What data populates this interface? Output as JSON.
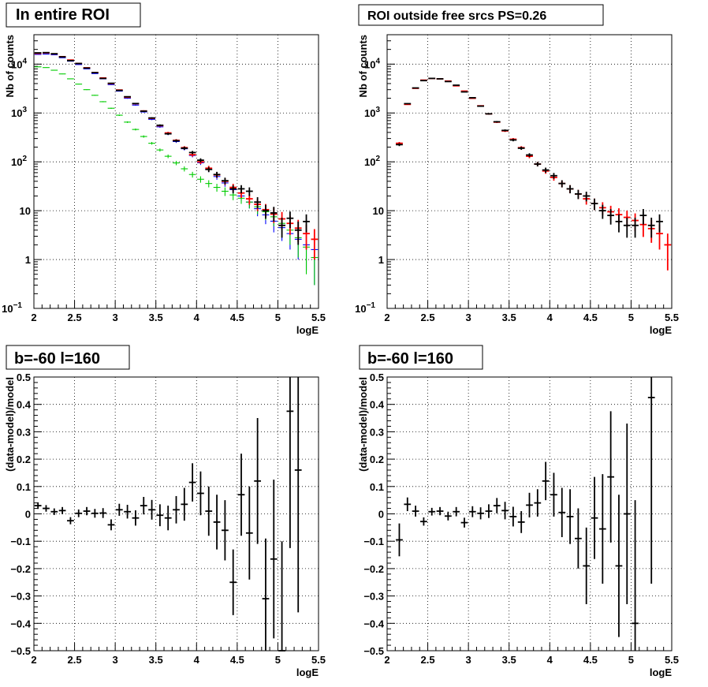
{
  "chart_data": [
    {
      "type": "scatter",
      "title": "In entire ROI",
      "xlabel": "logE",
      "ylabel": "Nb of counts",
      "xlim": [
        2,
        5.5
      ],
      "ylim": [
        0.1,
        40000
      ],
      "yscale": "log",
      "grid": true,
      "x_ticks": [
        2,
        2.5,
        3,
        3.5,
        4,
        4.5,
        5,
        5.5
      ],
      "x_tick_labels": [
        "2",
        "2.5",
        "3",
        "3.5",
        "4",
        "4.5",
        "5",
        "5.5"
      ],
      "y_ticks": [
        0.1,
        1,
        10,
        100,
        1000,
        10000
      ],
      "y_tick_labels": [
        {
          "base": "10",
          "exp": "−1"
        },
        {
          "base": "1",
          "exp": ""
        },
        {
          "base": "10",
          "exp": ""
        },
        {
          "base": "10",
          "exp": "2"
        },
        {
          "base": "10",
          "exp": "3"
        },
        {
          "base": "10",
          "exp": "4"
        }
      ],
      "series": [
        {
          "color": "#0000ff",
          "style": "errorbar",
          "x": [
            2.05,
            2.15,
            2.25,
            2.35,
            2.45,
            2.55,
            2.65,
            2.75,
            2.85,
            2.95,
            3.05,
            3.15,
            3.25,
            3.35,
            3.45,
            3.55,
            3.65,
            3.75,
            3.85,
            3.95,
            4.05,
            4.15,
            4.25,
            4.35,
            4.45,
            4.55,
            4.65,
            4.75,
            4.85,
            4.95,
            5.05,
            5.15,
            5.25,
            5.35,
            5.45
          ],
          "y": [
            15800,
            16000,
            15500,
            13500,
            11500,
            9800,
            8000,
            6400,
            5000,
            3800,
            2800,
            2000,
            1450,
            1050,
            740,
            520,
            370,
            260,
            185,
            135,
            96,
            70,
            50,
            37,
            27,
            20,
            15,
            11,
            8.2,
            6.1,
            4.5,
            3.4,
            2.6,
            2.0,
            1.6
          ],
          "err": [
            130,
            130,
            125,
            115,
            105,
            100,
            90,
            80,
            70,
            62,
            53,
            45,
            38,
            32,
            27,
            23,
            19,
            16,
            13.6,
            11.6,
            9.8,
            8.4,
            7.1,
            6.1,
            5.2,
            4.5,
            3.9,
            3.3,
            2.9,
            2.5,
            2.1,
            1.8,
            1.6,
            1.4,
            1.3
          ]
        },
        {
          "color": "#00cc00",
          "style": "errorbar",
          "x": [
            2.05,
            2.15,
            2.25,
            2.35,
            2.45,
            2.55,
            2.65,
            2.75,
            2.85,
            2.95,
            3.05,
            3.15,
            3.25,
            3.35,
            3.45,
            3.55,
            3.65,
            3.75,
            3.85,
            3.95,
            4.05,
            4.15,
            4.25,
            4.35,
            4.45,
            4.55,
            4.65,
            4.75,
            4.85,
            4.95,
            5.05,
            5.15,
            5.25,
            5.35,
            5.45
          ],
          "y": [
            8800,
            8500,
            7500,
            6300,
            5000,
            3900,
            3000,
            2300,
            1700,
            1250,
            900,
            650,
            460,
            330,
            240,
            175,
            130,
            95,
            72,
            55,
            44,
            36,
            30,
            25,
            21,
            18,
            15,
            12,
            9.5,
            7.5,
            5.5,
            4,
            2.8,
            1.8,
            1.1
          ],
          "err": [
            94,
            92,
            87,
            79,
            71,
            62,
            55,
            48,
            41,
            35,
            30,
            25,
            21,
            18,
            15,
            13,
            11,
            9.7,
            8.5,
            7.4,
            6.6,
            6,
            5.5,
            5,
            4.6,
            4.2,
            3.9,
            3.5,
            3.1,
            2.7,
            2.3,
            2.0,
            1.7,
            1.3,
            0.8
          ]
        },
        {
          "color": "#ff0000",
          "style": "errorbar",
          "x": [
            2.05,
            2.15,
            2.25,
            2.35,
            2.45,
            2.55,
            2.65,
            2.75,
            2.85,
            2.95,
            3.05,
            3.15,
            3.25,
            3.35,
            3.45,
            3.55,
            3.65,
            3.75,
            3.85,
            3.95,
            4.05,
            4.15,
            4.25,
            4.35,
            4.45,
            4.55,
            4.65,
            4.75,
            4.85,
            4.95,
            5.05,
            5.15,
            5.25,
            5.35,
            5.45
          ],
          "y": [
            16600,
            17000,
            16200,
            14200,
            12100,
            10300,
            8400,
            6700,
            5200,
            4000,
            2950,
            2100,
            1550,
            1100,
            780,
            550,
            390,
            275,
            195,
            140,
            100,
            74,
            54,
            40,
            30,
            23,
            17.5,
            13.5,
            10.5,
            8.5,
            6.8,
            5.5,
            4.4,
            3.4,
            2.6
          ],
          "err": [
            130,
            130,
            127,
            119,
            110,
            101,
            92,
            82,
            72,
            63,
            54,
            46,
            39,
            33,
            28,
            23,
            20,
            16.6,
            14,
            11.8,
            10,
            8.6,
            7.3,
            6.3,
            5.5,
            4.8,
            4.2,
            3.7,
            3.2,
            2.9,
            2.6,
            2.3,
            2.1,
            1.8,
            1.6
          ]
        },
        {
          "color": "#000000",
          "style": "errorbar",
          "x": [
            2.05,
            2.15,
            2.25,
            2.35,
            2.45,
            2.55,
            2.65,
            2.75,
            2.85,
            2.95,
            3.05,
            3.15,
            3.25,
            3.35,
            3.45,
            3.55,
            3.65,
            3.75,
            3.85,
            3.95,
            4.05,
            4.15,
            4.25,
            4.35,
            4.45,
            4.55,
            4.65,
            4.75,
            4.85,
            4.95,
            5.05,
            5.15,
            5.25,
            5.35
          ],
          "y": [
            17000,
            17200,
            16300,
            14100,
            11800,
            10300,
            8300,
            6700,
            5100,
            4050,
            2900,
            2150,
            1560,
            1090,
            790,
            560,
            375,
            270,
            190,
            155,
            108,
            70,
            55,
            41,
            28,
            28,
            25,
            15,
            10,
            9,
            5,
            7,
            4,
            6
          ],
          "err": [
            130,
            131,
            128,
            119,
            109,
            101,
            91,
            82,
            71,
            64,
            54,
            46,
            39,
            33,
            28,
            24,
            19,
            16,
            14,
            12,
            10,
            8.4,
            7.4,
            6.4,
            5.3,
            5.3,
            5,
            3.9,
            3.2,
            3,
            2.2,
            2.6,
            2,
            2.4
          ]
        }
      ]
    },
    {
      "type": "scatter",
      "title": "ROI outside free srcs PS=0.26",
      "xlabel": "logE",
      "ylabel": "Nb of counts",
      "xlim": [
        2,
        5.5
      ],
      "ylim": [
        0.1,
        40000
      ],
      "yscale": "log",
      "grid": true,
      "x_ticks": [
        2,
        2.5,
        3,
        3.5,
        4,
        4.5,
        5,
        5.5
      ],
      "x_tick_labels": [
        "2",
        "2.5",
        "3",
        "3.5",
        "4",
        "4.5",
        "5",
        "5.5"
      ],
      "y_ticks": [
        0.1,
        1,
        10,
        100,
        1000,
        10000
      ],
      "y_tick_labels": [
        {
          "base": "10",
          "exp": "−1"
        },
        {
          "base": "1",
          "exp": ""
        },
        {
          "base": "10",
          "exp": ""
        },
        {
          "base": "10",
          "exp": "2"
        },
        {
          "base": "10",
          "exp": "3"
        },
        {
          "base": "10",
          "exp": "4"
        }
      ],
      "series": [
        {
          "color": "#ff0000",
          "style": "errorbar",
          "x": [
            2.15,
            2.25,
            2.35,
            2.45,
            2.55,
            2.65,
            2.75,
            2.85,
            2.95,
            3.05,
            3.15,
            3.25,
            3.35,
            3.45,
            3.55,
            3.65,
            3.75,
            3.85,
            3.95,
            4.05,
            4.15,
            4.25,
            4.35,
            4.45,
            4.55,
            4.65,
            4.75,
            4.85,
            4.95,
            5.05,
            5.15,
            5.25,
            5.35,
            5.45
          ],
          "y": [
            240,
            1500,
            3200,
            4700,
            5100,
            5000,
            4500,
            3600,
            2800,
            2000,
            1400,
            960,
            650,
            430,
            290,
            195,
            130,
            90,
            65,
            48,
            36,
            28,
            22,
            17.5,
            14,
            11.5,
            9.5,
            8.3,
            7.3,
            6.3,
            5.2,
            4.3,
            3.4,
            2
          ],
          "err": [
            15,
            39,
            57,
            69,
            71,
            71,
            67,
            60,
            53,
            45,
            37,
            31,
            25,
            21,
            17,
            14,
            11.4,
            9.5,
            8,
            6.9,
            6,
            5.3,
            4.7,
            4.2,
            3.7,
            3.4,
            3.1,
            2.9,
            2.7,
            2.5,
            2.3,
            2.1,
            1.8,
            1.4
          ]
        },
        {
          "color": "#000000",
          "style": "errorbar",
          "x": [
            2.15,
            2.25,
            2.35,
            2.45,
            2.55,
            2.65,
            2.75,
            2.85,
            2.95,
            3.05,
            3.15,
            3.25,
            3.35,
            3.45,
            3.55,
            3.65,
            3.75,
            3.85,
            3.95,
            4.05,
            4.15,
            4.25,
            4.35,
            4.45,
            4.55,
            4.65,
            4.75,
            4.85,
            4.95,
            5.05,
            5.15,
            5.25,
            5.35
          ],
          "y": [
            225,
            1550,
            3250,
            4600,
            5100,
            5000,
            4400,
            3700,
            2700,
            2050,
            1380,
            960,
            660,
            440,
            280,
            190,
            138,
            90,
            68,
            52,
            36,
            28,
            22,
            20,
            14,
            10,
            8,
            6,
            5,
            5,
            8,
            5,
            6
          ],
          "err": [
            15,
            39,
            57,
            68,
            71,
            71,
            66,
            61,
            52,
            45,
            37,
            31,
            26,
            21,
            17,
            14,
            11.7,
            9.5,
            8.2,
            7.2,
            6,
            5.3,
            4.7,
            4.5,
            3.7,
            3.2,
            2.8,
            2.4,
            2.2,
            2.2,
            2.8,
            2.2,
            2.4
          ]
        }
      ]
    },
    {
      "type": "scatter",
      "title": "b=-60 l=160",
      "xlabel": "logE",
      "ylabel": "(data-model)/model",
      "xlim": [
        2,
        5.5
      ],
      "ylim": [
        -0.5,
        0.5
      ],
      "grid": true,
      "x_ticks": [
        2,
        2.5,
        3,
        3.5,
        4,
        4.5,
        5,
        5.5
      ],
      "x_tick_labels": [
        "2",
        "2.5",
        "3",
        "3.5",
        "4",
        "4.5",
        "5",
        "5.5"
      ],
      "y_ticks": [
        -0.5,
        -0.4,
        -0.3,
        -0.2,
        -0.1,
        0,
        0.1,
        0.2,
        0.3,
        0.4,
        0.5
      ],
      "y_tick_labels": [
        "−0.5",
        "−0.4",
        "−0.3",
        "−0.2",
        "−0.1",
        "0",
        "0.1",
        "0.2",
        "0.3",
        "0.4",
        "0.5"
      ],
      "series": [
        {
          "color": "#000000",
          "style": "errorbar",
          "x": [
            2.05,
            2.15,
            2.25,
            2.35,
            2.45,
            2.55,
            2.65,
            2.75,
            2.85,
            2.95,
            3.05,
            3.15,
            3.25,
            3.35,
            3.45,
            3.55,
            3.65,
            3.75,
            3.85,
            3.95,
            4.05,
            4.15,
            4.25,
            4.35,
            4.45,
            4.55,
            4.65,
            4.75,
            4.85,
            4.95,
            5.05,
            5.15,
            5.25
          ],
          "y": [
            0.03,
            0.02,
            0.008,
            0.012,
            -0.025,
            0.002,
            0.01,
            0.002,
            0.003,
            -0.04,
            0.015,
            0.008,
            -0.015,
            0.03,
            0.015,
            -0.005,
            -0.015,
            0.015,
            0.035,
            0.115,
            0.075,
            0.01,
            -0.03,
            -0.06,
            -0.25,
            0.07,
            -0.07,
            0.12,
            -0.31,
            -0.165,
            -0.5,
            0.375,
            0.16
          ],
          "err": [
            0.012,
            0.012,
            0.012,
            0.013,
            0.013,
            0.014,
            0.015,
            0.016,
            0.018,
            0.02,
            0.022,
            0.025,
            0.028,
            0.032,
            0.036,
            0.04,
            0.045,
            0.05,
            0.06,
            0.07,
            0.08,
            0.09,
            0.1,
            0.11,
            0.12,
            0.15,
            0.17,
            0.23,
            0.22,
            0.29,
            0.4,
            0.5,
            0.52
          ]
        }
      ]
    },
    {
      "type": "scatter",
      "title": "b=-60 l=160",
      "xlabel": "logE",
      "ylabel": "(data-model)/model",
      "xlim": [
        2,
        5.5
      ],
      "ylim": [
        -0.5,
        0.5
      ],
      "grid": true,
      "x_ticks": [
        2,
        2.5,
        3,
        3.5,
        4,
        4.5,
        5,
        5.5
      ],
      "x_tick_labels": [
        "2",
        "2.5",
        "3",
        "3.5",
        "4",
        "4.5",
        "5",
        "5.5"
      ],
      "y_ticks": [
        -0.5,
        -0.4,
        -0.3,
        -0.2,
        -0.1,
        0,
        0.1,
        0.2,
        0.3,
        0.4,
        0.5
      ],
      "y_tick_labels": [
        "−0.5",
        "−0.4",
        "−0.3",
        "−0.2",
        "−0.1",
        "0",
        "0.1",
        "0.2",
        "0.3",
        "0.4",
        "0.5"
      ],
      "series": [
        {
          "color": "#000000",
          "style": "errorbar",
          "x": [
            2.15,
            2.25,
            2.35,
            2.45,
            2.55,
            2.65,
            2.75,
            2.85,
            2.95,
            3.05,
            3.15,
            3.25,
            3.35,
            3.45,
            3.55,
            3.65,
            3.75,
            3.85,
            3.95,
            4.05,
            4.15,
            4.25,
            4.35,
            4.45,
            4.55,
            4.65,
            4.75,
            4.85,
            4.95,
            5.05,
            5.25
          ],
          "y": [
            -0.095,
            0.035,
            0.01,
            -0.028,
            0.008,
            0.01,
            -0.008,
            0.008,
            -0.032,
            0.008,
            0.002,
            0.01,
            0.03,
            0.012,
            -0.01,
            -0.03,
            0.032,
            0.04,
            0.12,
            0.07,
            0.005,
            -0.01,
            -0.09,
            -0.19,
            -0.015,
            -0.055,
            0.135,
            -0.19,
            0.0,
            -0.4,
            0.425
          ],
          "err": [
            0.06,
            0.025,
            0.02,
            0.015,
            0.014,
            0.015,
            0.016,
            0.017,
            0.018,
            0.02,
            0.022,
            0.025,
            0.028,
            0.032,
            0.036,
            0.04,
            0.045,
            0.05,
            0.07,
            0.08,
            0.09,
            0.1,
            0.11,
            0.14,
            0.15,
            0.2,
            0.24,
            0.26,
            0.33,
            0.45,
            0.68
          ]
        }
      ]
    }
  ]
}
